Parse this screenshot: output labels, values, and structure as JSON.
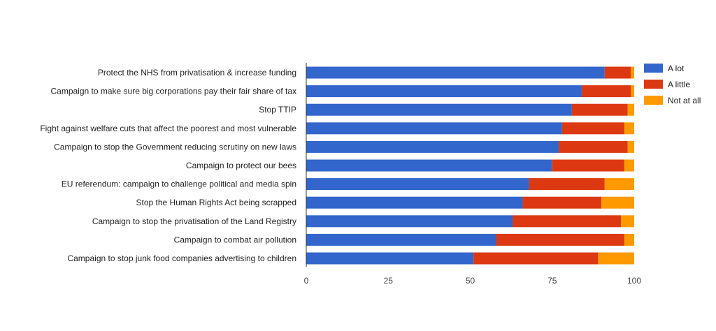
{
  "chart_data": {
    "type": "bar",
    "orientation": "horizontal",
    "stacked": true,
    "categories": [
      "Protect the NHS from privatisation & increase funding",
      "Campaign to make sure big corporations pay their fair share of tax",
      "Stop TTIP",
      "Fight against welfare cuts that affect the poorest and most vulnerable",
      "Campaign to stop the Government reducing scrutiny on new laws",
      "Campaign to protect our bees",
      "EU referendum: campaign to challenge political and media spin",
      "Stop the Human Rights Act being scrapped",
      "Campaign to stop the privatisation of the Land Registry",
      "Campaign to combat air pollution",
      "Campaign to stop junk food companies advertising to children"
    ],
    "series": [
      {
        "name": "A lot",
        "color": "#3366cc",
        "values": [
          91,
          84,
          81,
          78,
          77,
          75,
          68,
          66,
          63,
          58,
          51
        ]
      },
      {
        "name": "A little",
        "color": "#dc3912",
        "values": [
          8,
          15,
          17,
          19,
          21,
          22,
          23,
          24,
          33,
          39,
          38
        ]
      },
      {
        "name": "Not at all",
        "color": "#ff9900",
        "values": [
          1,
          1,
          2,
          3,
          2,
          3,
          9,
          10,
          4,
          3,
          11
        ]
      }
    ],
    "xlim": [
      0,
      100
    ],
    "xticks": [
      "0",
      "25",
      "50",
      "75",
      "100"
    ],
    "grid": false,
    "legend_position": "right",
    "title": "",
    "xlabel": "",
    "ylabel": ""
  }
}
